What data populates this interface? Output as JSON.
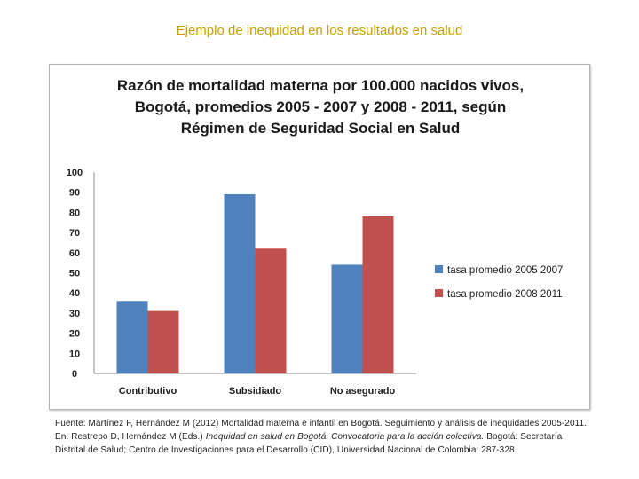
{
  "slide": {
    "title": "Ejemplo de inequidad en los resultados en salud",
    "source": {
      "part1": "Fuente: Martínez F, Hernández M (2012) Mortalidad materna e infantil en Bogotá. Seguimiento y análisis de inequidades 2005-2011. En: Restrepo D, Hernández M (Eds.) ",
      "italic": "Inequidad en salud en Bogotá. Convocatoria para la acción colectiva.",
      "part2": " Bogotá: Secretaría Distrital de Salud; Centro de Investigaciones para el Desarrollo (CID), Universidad Nacional de Colombia: 287-328."
    }
  },
  "chart_data": {
    "type": "bar",
    "title": "Razón de mortalidad materna por 100.000 nacidos vivos, Bogotá, promedios 2005 - 2007 y 2008 - 2011, según Régimen de Seguridad Social en Salud",
    "categories": [
      "Contributivo",
      "Subsidiado",
      "No asegurado"
    ],
    "series": [
      {
        "name": "tasa promedio 2005 2007",
        "values": [
          36,
          89,
          54
        ],
        "color": "#4f81bd"
      },
      {
        "name": "tasa promedio 2008 2011",
        "values": [
          31,
          62,
          78
        ],
        "color": "#c0504d"
      }
    ],
    "ylim": [
      0,
      100
    ],
    "yticks": [
      0,
      10,
      20,
      30,
      40,
      50,
      60,
      70,
      80,
      90,
      100
    ],
    "grid": false,
    "legend": "right",
    "xlabel": "",
    "ylabel": ""
  }
}
